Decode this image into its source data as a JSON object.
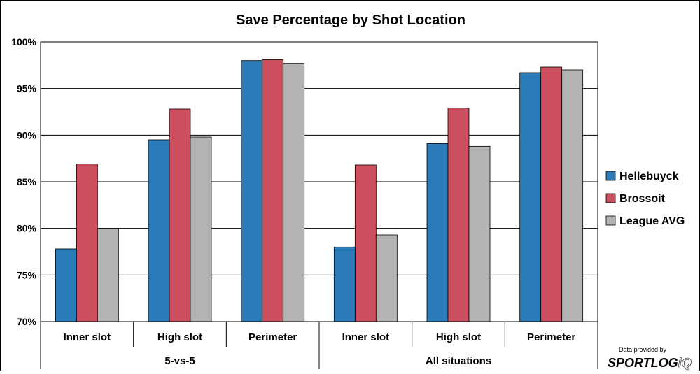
{
  "chart_data": {
    "type": "bar",
    "title": "Save Percentage by Shot Location",
    "xlabel": "",
    "ylabel": "",
    "ylim": [
      70,
      100
    ],
    "yticks": [
      70,
      75,
      80,
      85,
      90,
      95,
      100
    ],
    "ytick_suffix": "%",
    "grid": true,
    "legend_position": "right",
    "groups": [
      {
        "label": "5-vs-5",
        "categories": [
          "Inner slot",
          "High slot",
          "Perimeter"
        ]
      },
      {
        "label": "All situations",
        "categories": [
          "Inner slot",
          "High slot",
          "Perimeter"
        ]
      }
    ],
    "categories": [
      "Inner slot",
      "High slot",
      "Perimeter",
      "Inner slot",
      "High slot",
      "Perimeter"
    ],
    "series": [
      {
        "name": "Hellebuyck",
        "color": "#2b7bb9",
        "values": [
          77.8,
          89.5,
          98.0,
          78.0,
          89.1,
          96.7
        ]
      },
      {
        "name": "Brossoit",
        "color": "#cc4f5f",
        "values": [
          86.9,
          92.8,
          98.1,
          86.8,
          92.9,
          97.3
        ]
      },
      {
        "name": "League AVG",
        "color": "#b3b3b3",
        "values": [
          80.0,
          89.8,
          97.7,
          79.3,
          88.8,
          97.0
        ]
      }
    ]
  },
  "credit": {
    "prefix": "Data provided by",
    "brand": "SPORTLOG",
    "brand_suffix": "iQ"
  }
}
